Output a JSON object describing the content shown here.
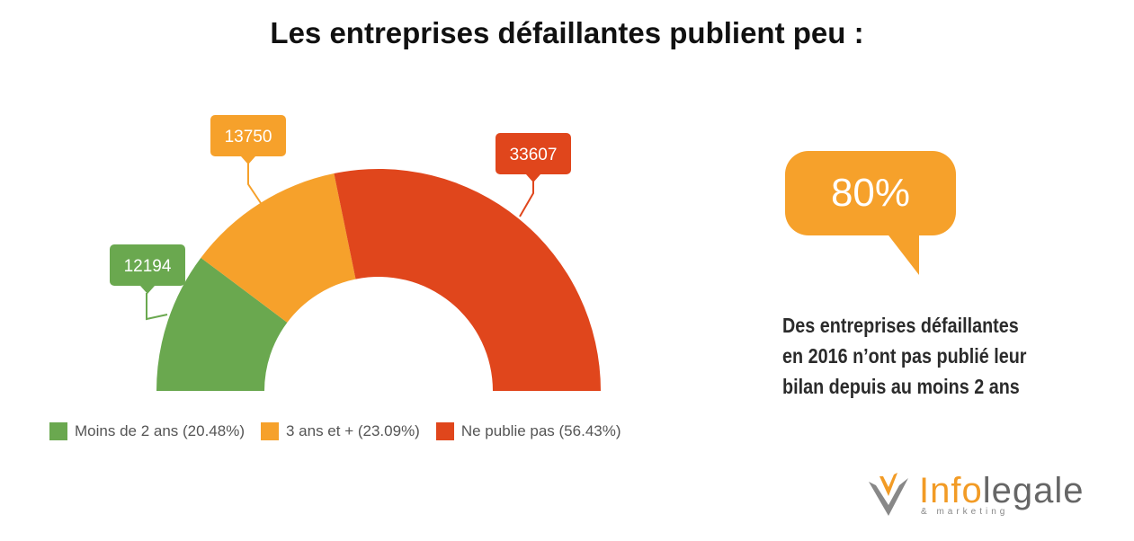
{
  "title": "Les entreprises défaillantes publient peu :",
  "chart_data": {
    "type": "pie",
    "variant": "semi-donut",
    "series": [
      {
        "name": "Moins de 2 ans (20.48%)",
        "value": 12194,
        "label": "12194",
        "color": "#6aa84f"
      },
      {
        "name": "3 ans et + (23.09%)",
        "value": 13750,
        "label": "13750",
        "color": "#f6a12b"
      },
      {
        "name": "Ne publie pas (56.43%)",
        "value": 33607,
        "label": "33607",
        "color": "#e0461c"
      }
    ],
    "legend_position": "bottom-left"
  },
  "highlight": {
    "value": "80%",
    "color": "#f6a12b",
    "caption_lines": [
      "Des entreprises défaillantes",
      "en 2016 n’ont pas publié leur",
      "bilan depuis au moins 2 ans"
    ]
  },
  "logo": {
    "name_part1": "Info",
    "name_part2": "legale",
    "subtitle": "& marketing",
    "accent_color": "#f29b25"
  }
}
